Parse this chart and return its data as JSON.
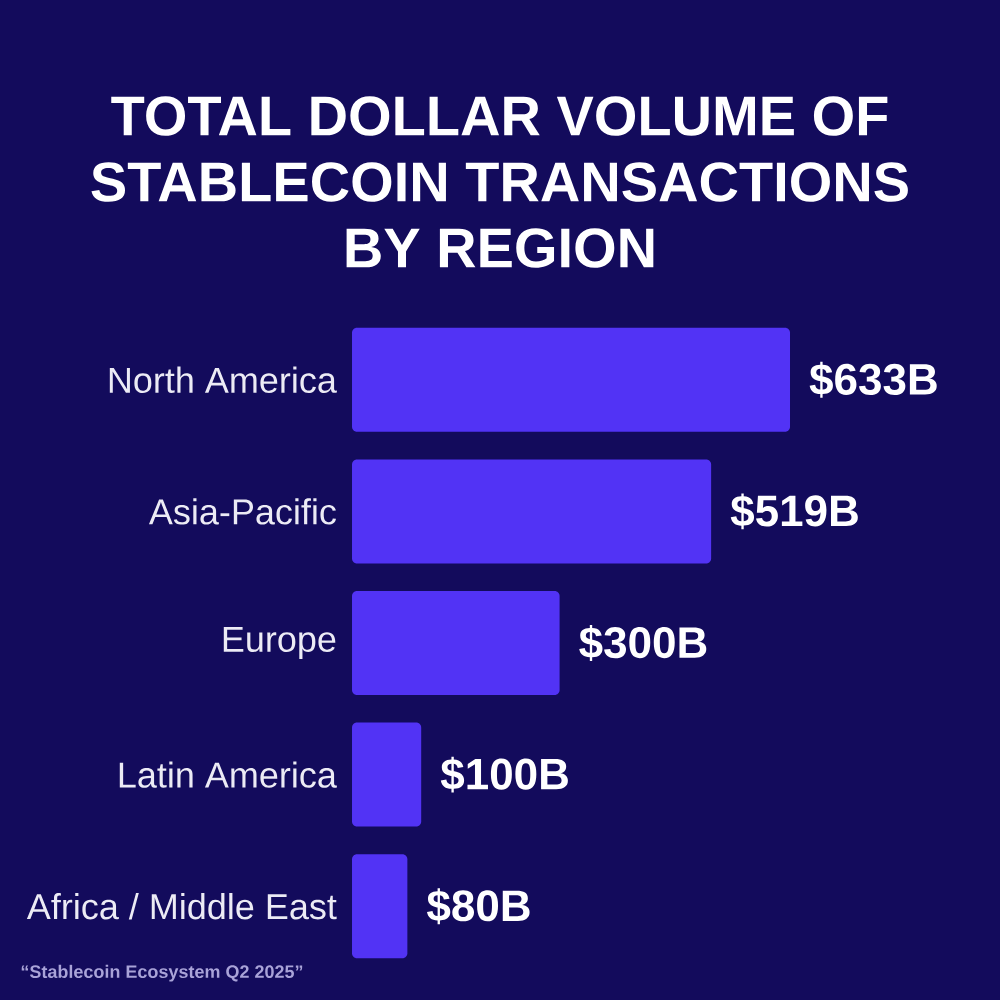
{
  "chart_data": {
    "type": "bar",
    "orientation": "horizontal",
    "title": "TOTAL DOLLAR VOLUME OF STABLECOIN TRANSACTIONS BY REGION",
    "categories": [
      "North America",
      "Asia-Pacific",
      "Europe",
      "Latin America",
      "Africa / Middle East"
    ],
    "values": [
      633,
      519,
      300,
      100,
      80
    ],
    "value_labels": [
      "$633B",
      "$519B",
      "$300B",
      "$100B",
      "$80B"
    ],
    "color": "#5233f5",
    "annotations": [
      "“Stablecoin Ecosystem Q2 2025”"
    ]
  }
}
